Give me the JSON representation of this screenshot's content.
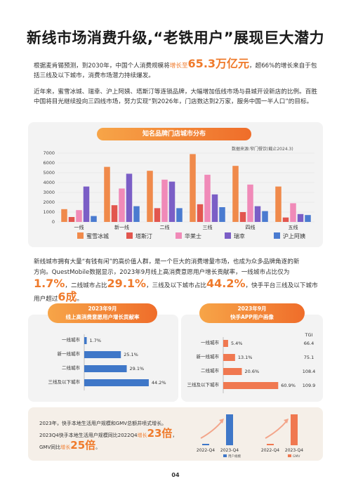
{
  "page_title": "新线市场消费升级,“老铁用户”展现巨大潜力",
  "para1": {
    "pre": "根据麦肯锡预测，到2030年，中国个人消费规模将",
    "hl_small": "增长至",
    "hl_big": "65.3万亿元",
    "post": "，超66%的增长来自于包括三线及以下城市，消费市场潜力持续爆发。"
  },
  "para2": "近年来，蜜雪冰城、瑞幸、沪上阿姨、塔斯汀等连锁品牌，大幅增加低线市场与县城开设新店的比例。百胜中国将目光继续投向三四线市场，努力实现“到2026年，门店数达到2万家，服务中国一半人口”的目标。",
  "chart_data": [
    {
      "type": "bar",
      "title": "知名品牌门店城市分布",
      "source": "数据来源:窄门餐饮(截止2024.3)",
      "categories": [
        "一线",
        "新一线",
        "二线",
        "三线",
        "四线",
        "五线"
      ],
      "ylim": [
        0,
        7000
      ],
      "yticks": [
        "0",
        "1000",
        "2000",
        "3000",
        "4000",
        "5000",
        "6000",
        "7000"
      ],
      "series": [
        {
          "name": "蜜雪冰城",
          "color": "#f08a4b",
          "values": [
            1300,
            5600,
            5200,
            6900,
            5700,
            3600
          ]
        },
        {
          "name": "塔斯汀",
          "color": "#e2564e",
          "values": [
            500,
            1700,
            1400,
            1800,
            1000,
            450
          ]
        },
        {
          "name": "华莱士",
          "color": "#f08ab8",
          "values": [
            1200,
            3400,
            4300,
            4800,
            3800,
            1900
          ]
        },
        {
          "name": "瑞幸",
          "color": "#7b5ec6",
          "values": [
            3600,
            4900,
            4100,
            2800,
            1600,
            800
          ]
        },
        {
          "name": "沪上阿姨",
          "color": "#4a7bd0",
          "values": [
            600,
            1600,
            1400,
            1500,
            1100,
            700
          ]
        }
      ]
    },
    {
      "type": "bar",
      "title_line1": "2023年9月",
      "title_line2": "线上高消费意愿用户增长贡献率",
      "categories": [
        "一线城市",
        "新一线城市",
        "二线城市",
        "三线及以下城市"
      ],
      "values": [
        1.7,
        25.1,
        29.1,
        44.2
      ],
      "value_labels": [
        "1.7%",
        "25.1%",
        "29.1%",
        "44.2%"
      ],
      "color": "#3f77c8",
      "xlim": [
        0,
        50
      ]
    },
    {
      "type": "bar",
      "title_line1": "2023年9月",
      "title_line2": "快手APP用户画像",
      "categories": [
        "一线城市",
        "新一线城市",
        "二线城市",
        "三线及以下城市"
      ],
      "values": [
        5.4,
        13.1,
        20.6,
        60.9
      ],
      "value_labels": [
        "5.4%",
        "13.1%",
        "20.6%",
        "60.9%"
      ],
      "tgi_header": "TGI",
      "tgi": [
        "66.4",
        "75.1",
        "108.4",
        "109.9"
      ],
      "color": "#f07850",
      "xlim": [
        0,
        70
      ]
    },
    {
      "type": "bar",
      "categories": [
        "2022-Q4",
        "2023-Q4"
      ],
      "values": [
        1,
        23
      ],
      "color": "#3f77c8",
      "legend": "用户规模"
    },
    {
      "type": "bar",
      "categories": [
        "2022-Q4",
        "2023-Q4"
      ],
      "values": [
        1,
        25
      ],
      "color": "#f07850",
      "legend": "GMV"
    }
  ],
  "para3": {
    "l1": "新线城市拥有大量“有钱有闲”的高价值人群，是一个巨大的消费增量市场，也成为众多品牌角逐的新",
    "l2": "方向。QuestMobile数据显示，2023年9月线上高消费意愿用户增长贡献率，一线城市占比仅为",
    "v1": "1.7%",
    "s1": "，二线城市占比",
    "v2": "29.1%",
    "s2": "，三线及以下城市占比",
    "v3": "44.2%",
    "s3": "，快手平台三线及以下城市",
    "l4a": "用户超过",
    "v4": "6成",
    "l4b": "。"
  },
  "bottom_note": {
    "line1": "2023年，快手本地生活用户规模和GMV总额井喷式增长。",
    "line2_pre": "2023Q4快手本地生活用户规模同比2022Q4",
    "line2_hl": "增长",
    "line2_big": "23倍",
    "line2_post": "，",
    "line3_pre": "GMV同比",
    "line3_hl": "增长",
    "line3_big": "25倍",
    "line3_post": "。"
  },
  "page_number": "04"
}
